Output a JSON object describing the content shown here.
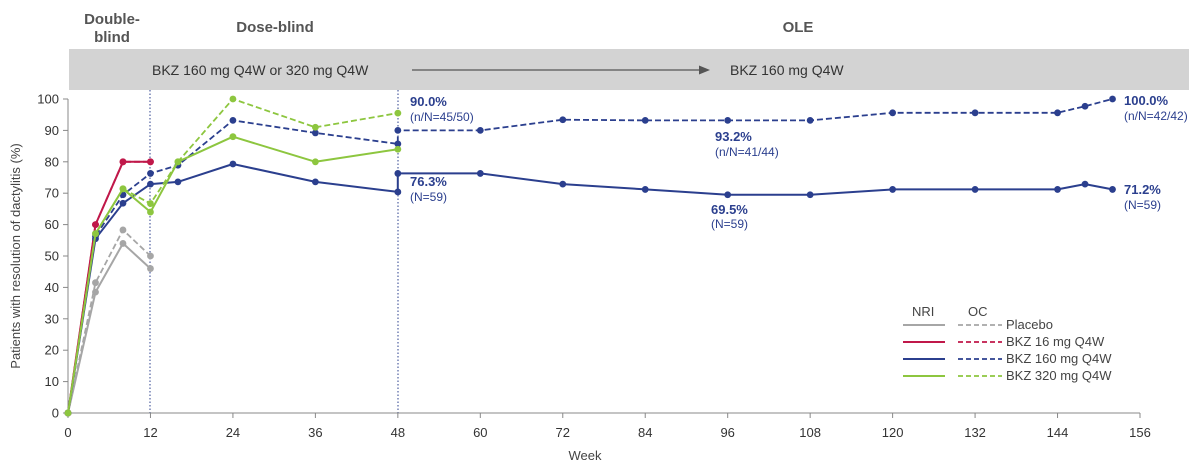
{
  "chart_data": {
    "type": "line",
    "title": "",
    "xlabel": "Week",
    "ylabel": "Patients with resolution of dactylitis (%)",
    "xlim": [
      0,
      156
    ],
    "ylim": [
      0,
      100
    ],
    "xticks": [
      "0",
      "12",
      "24",
      "36",
      "48",
      "60",
      "72",
      "84",
      "96",
      "108",
      "120",
      "132",
      "144",
      "156"
    ],
    "yticks": [
      "0",
      "10",
      "20",
      "30",
      "40",
      "50",
      "60",
      "70",
      "80",
      "90",
      "100"
    ],
    "grid": false,
    "phases": [
      {
        "label": "Double-\nblind",
        "line1": "Double-",
        "line2": "blind"
      },
      {
        "label": "Dose-blind"
      },
      {
        "label": "OLE"
      }
    ],
    "banner": {
      "left_text": "BKZ 160 mg Q4W or 320 mg Q4W",
      "right_text": "BKZ 160 mg Q4W"
    },
    "legend": {
      "position": "lower-right",
      "nri_header": "NRI",
      "oc_header": "OC",
      "entries": [
        "Placebo",
        "BKZ 16 mg Q4W",
        "BKZ 160 mg Q4W",
        "BKZ 320 mg Q4W"
      ]
    },
    "annotations": [
      {
        "x": 48,
        "y": 90.0,
        "value": "90.0%",
        "detail": "(n/N=45/50)"
      },
      {
        "x": 48,
        "y": 76.3,
        "value": "76.3%",
        "detail": "(N=59)"
      },
      {
        "x": 96,
        "y": 93.2,
        "value": "93.2%",
        "detail": "(n/N=41/44)"
      },
      {
        "x": 96,
        "y": 69.5,
        "value": "69.5%",
        "detail": "(N=59)"
      },
      {
        "x": 152,
        "y": 100.0,
        "value": "100.0%",
        "detail": "(n/N=42/42)"
      },
      {
        "x": 152,
        "y": 71.2,
        "value": "71.2%",
        "detail": "(N=59)"
      }
    ],
    "series": [
      {
        "name": "Placebo",
        "method": "NRI",
        "color": "#a6a6a6",
        "dash": false,
        "x": [
          0,
          4,
          8,
          12
        ],
        "y": [
          0,
          38.5,
          54,
          46
        ]
      },
      {
        "name": "Placebo",
        "method": "OC",
        "color": "#a6a6a6",
        "dash": true,
        "x": [
          0,
          4,
          8,
          12
        ],
        "y": [
          0,
          41.5,
          58.3,
          50
        ]
      },
      {
        "name": "BKZ 16 mg Q4W",
        "method": "NRI",
        "color": "#c0184a",
        "dash": false,
        "x": [
          0,
          4,
          8,
          12
        ],
        "y": [
          0,
          60,
          80,
          80
        ]
      },
      {
        "name": "BKZ 16 mg Q4W",
        "method": "OC",
        "color": "#c0184a",
        "dash": true,
        "x": [
          0,
          4,
          8,
          12
        ],
        "y": [
          0,
          60,
          80,
          80
        ]
      },
      {
        "name": "BKZ 160 mg Q4W",
        "method": "NRI",
        "color": "#2b3f8e",
        "dash": false,
        "x": [
          0,
          4,
          8,
          12,
          16,
          24,
          36,
          48,
          48,
          60,
          72,
          84,
          96,
          108,
          120,
          132,
          144,
          148,
          152
        ],
        "y": [
          0,
          55.5,
          66.8,
          72.9,
          73.6,
          79.3,
          73.6,
          70.4,
          76.3,
          76.3,
          72.9,
          71.2,
          69.5,
          69.5,
          71.2,
          71.2,
          71.2,
          72.9,
          71.2
        ]
      },
      {
        "name": "BKZ 160 mg Q4W",
        "method": "OC",
        "color": "#2b3f8e",
        "dash": true,
        "x": [
          0,
          4,
          8,
          12,
          16,
          24,
          36,
          48,
          48,
          60,
          72,
          84,
          96,
          108,
          120,
          132,
          144,
          148,
          152
        ],
        "y": [
          0,
          56.3,
          69.5,
          76.3,
          78.9,
          93.2,
          89.2,
          85.7,
          90.0,
          90.0,
          93.4,
          93.2,
          93.2,
          93.2,
          95.6,
          95.6,
          95.6,
          97.7,
          100.0
        ]
      },
      {
        "name": "BKZ 320 mg Q4W",
        "method": "NRI",
        "color": "#8dc63f",
        "dash": false,
        "x": [
          0,
          4,
          8,
          12,
          16,
          24,
          36,
          48
        ],
        "y": [
          0,
          57.1,
          71.4,
          64.0,
          80.0,
          88.0,
          80.0,
          84.0
        ]
      },
      {
        "name": "BKZ 320 mg Q4W",
        "method": "OC",
        "color": "#8dc63f",
        "dash": true,
        "x": [
          0,
          4,
          8,
          12,
          16,
          24,
          36,
          48
        ],
        "y": [
          0,
          57.1,
          71.4,
          66.7,
          80.0,
          100.0,
          91.0,
          95.5
        ]
      }
    ]
  }
}
